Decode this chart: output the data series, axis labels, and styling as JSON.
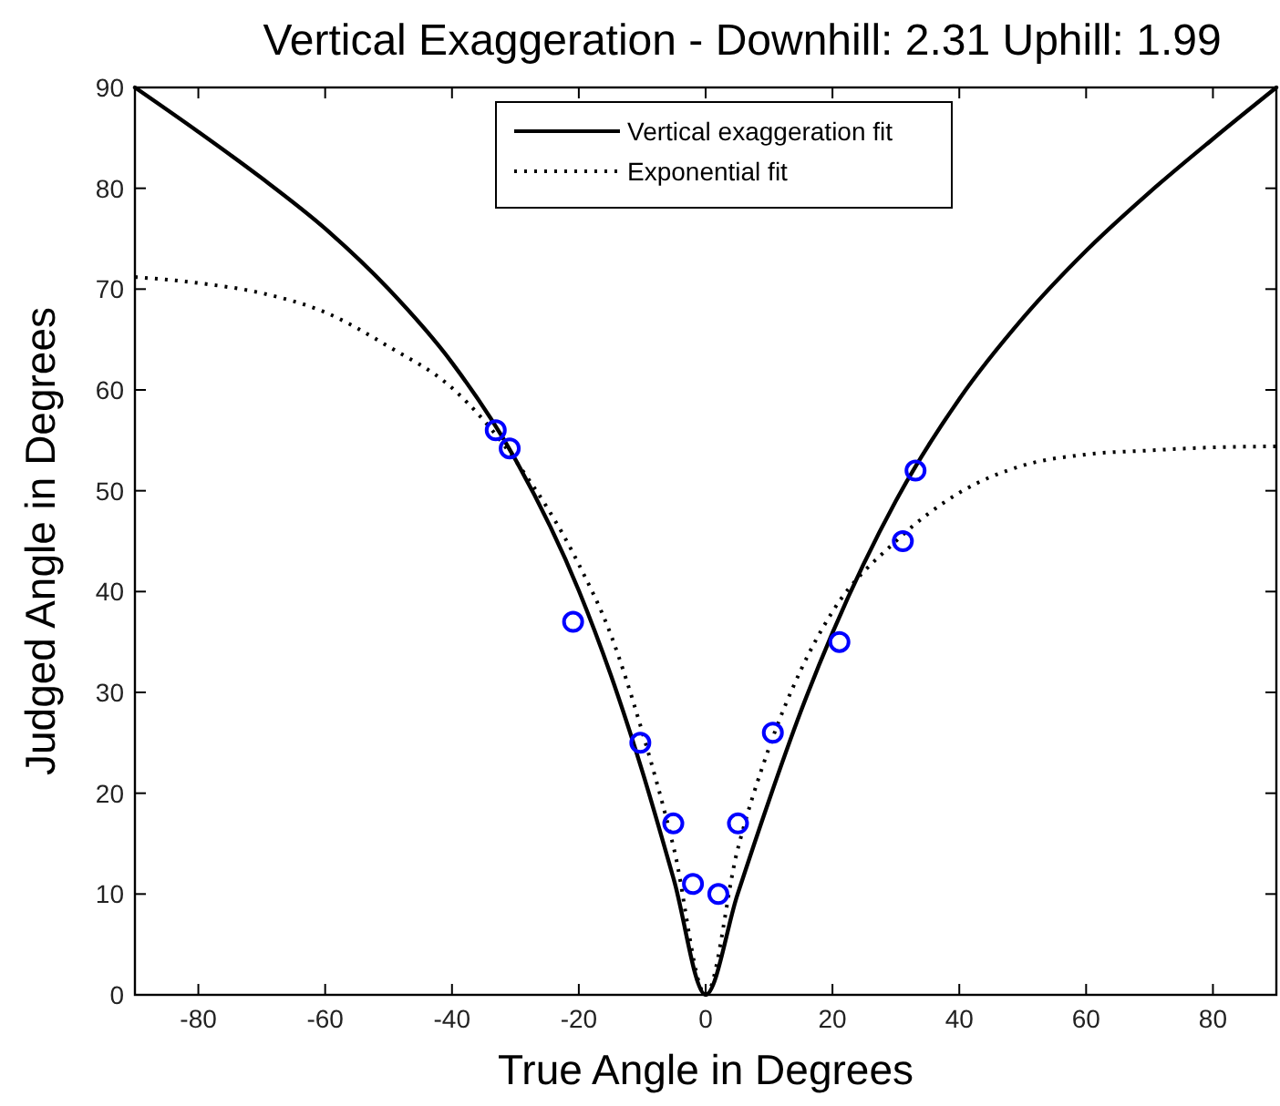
{
  "chart_data": {
    "type": "line",
    "title": "Vertical Exaggeration - Downhill: 2.31 Uphill: 1.99",
    "xlabel": "True Angle in Degrees",
    "ylabel": "Judged Angle in Degrees",
    "xlim": [
      -90,
      90
    ],
    "ylim": [
      0,
      90
    ],
    "xticks": [
      -80,
      -60,
      -40,
      -20,
      0,
      20,
      40,
      60,
      80
    ],
    "yticks": [
      0,
      10,
      20,
      30,
      40,
      50,
      60,
      70,
      80,
      90
    ],
    "grid": false,
    "legend": "top",
    "series": [
      {
        "name": "Vertical exaggeration fit",
        "color": "#000000",
        "line_style": "solid",
        "x": [
          -90,
          -80,
          -70,
          -60,
          -50,
          -40,
          -30,
          -20,
          -15,
          -10,
          -5,
          0,
          5,
          10,
          15,
          20,
          30,
          40,
          50,
          60,
          70,
          80,
          90
        ],
        "values": [
          90,
          85.6,
          81.0,
          76.0,
          70.0,
          62.7,
          53.1,
          40.1,
          31.8,
          22.2,
          11.4,
          0,
          9.9,
          19.3,
          28.1,
          35.9,
          49.0,
          59.1,
          67.1,
          73.8,
          79.6,
          84.9,
          90
        ]
      },
      {
        "name": "Exponential fit",
        "color": "#000000",
        "line_style": "dotted",
        "x": [
          -90,
          -80,
          -70,
          -60,
          -50,
          -40,
          -30,
          -20,
          -15,
          -10,
          -5,
          0,
          5,
          10,
          15,
          20,
          30,
          40,
          50,
          60,
          70,
          80,
          90
        ],
        "values": [
          71.2,
          70.6,
          69.6,
          67.7,
          64.3,
          60.2,
          53.0,
          42.7,
          35.8,
          26.1,
          14.5,
          0,
          14.3,
          24.5,
          32.2,
          38.0,
          45.0,
          49.8,
          52.5,
          53.6,
          54.0,
          54.3,
          54.4
        ]
      },
      {
        "type": "scatter",
        "color": "#0000ff",
        "marker": "circle",
        "x": [
          -33.1,
          -30.9,
          -20.9,
          -10.3,
          -5.1,
          -2,
          2,
          5.1,
          10.6,
          21.1,
          31.1,
          33.1
        ],
        "values": [
          56,
          54.2,
          37,
          25,
          17,
          11,
          10,
          17,
          26,
          35,
          45,
          52
        ]
      }
    ]
  }
}
